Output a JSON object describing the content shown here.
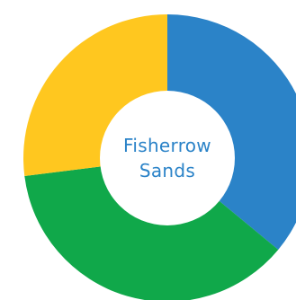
{
  "chart_data": {
    "type": "pie",
    "variant": "donut",
    "center_label": [
      "Fisherrow",
      "Sands"
    ],
    "slices": [
      {
        "value": 36,
        "color": "#2B83C8"
      },
      {
        "value": 37,
        "color": "#10A84A"
      },
      {
        "value": 27,
        "color": "#FFC71F"
      }
    ],
    "start_angle_deg": 0,
    "direction": "clockwise",
    "center_label_color": "#2B83C8",
    "legend": "none"
  }
}
